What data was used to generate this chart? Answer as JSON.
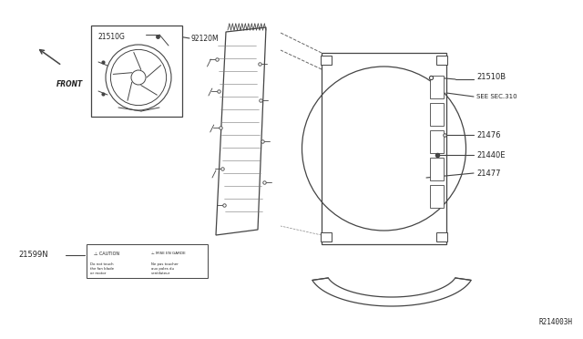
{
  "bg_color": "#ffffff",
  "line_color": "#444444",
  "text_color": "#222222",
  "diagram_code": "R214003H",
  "figsize": [
    6.4,
    3.72
  ],
  "dpi": 100,
  "xlim": [
    0,
    640
  ],
  "ylim": [
    0,
    372
  ]
}
